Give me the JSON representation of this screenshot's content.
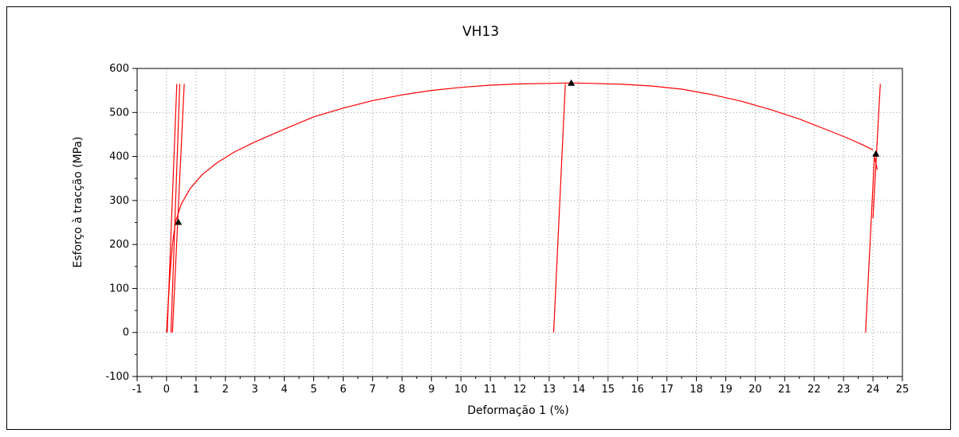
{
  "chart_data": {
    "type": "line",
    "title": "VH13",
    "xlabel": "Deformação 1 (%)",
    "ylabel": "Esforço à tracção (MPa)",
    "xlim": [
      -1,
      25
    ],
    "ylim": [
      -100,
      600
    ],
    "x_ticks": [
      "-1",
      "0",
      "1",
      "2",
      "3",
      "4",
      "5",
      "6",
      "7",
      "8",
      "9",
      "10",
      "11",
      "12",
      "13",
      "14",
      "15",
      "16",
      "17",
      "18",
      "19",
      "20",
      "21",
      "22",
      "23",
      "24",
      "25"
    ],
    "y_ticks": [
      "-100",
      "0",
      "100",
      "200",
      "300",
      "400",
      "500",
      "600"
    ],
    "grid": true,
    "legend": "none",
    "colors": {
      "line": "#ff0000",
      "marker": "#000000"
    },
    "series": [
      {
        "x": [
          0,
          0.05,
          0.1,
          0.15,
          0.2,
          0.3,
          0.5,
          0.8,
          1.2,
          1.7,
          2.3,
          3.0,
          4.0,
          5.0,
          6.0,
          7.0,
          8.0,
          9.0,
          10.0,
          11.0,
          12.0,
          13.0,
          13.7,
          14.5,
          15.5,
          16.5,
          17.5,
          18.5,
          19.5,
          20.5,
          21.5,
          22.5,
          23.2,
          23.7,
          24.0
        ],
        "y": [
          0,
          60,
          115,
          160,
          200,
          250,
          292,
          327,
          358,
          385,
          410,
          433,
          462,
          490,
          510,
          527,
          540,
          550,
          557,
          562,
          565,
          566,
          567,
          566,
          564,
          560,
          553,
          541,
          526,
          507,
          485,
          459,
          440,
          425,
          415
        ]
      },
      {
        "x": [
          0.15,
          0.45
        ],
        "y": [
          0,
          565
        ]
      },
      {
        "x": [
          0.02,
          0.35
        ],
        "y": [
          0,
          565
        ]
      },
      {
        "x": [
          0.2,
          0.6
        ],
        "y": [
          0,
          565
        ]
      },
      {
        "x": [
          13.15,
          13.55
        ],
        "y": [
          0,
          565
        ]
      },
      {
        "x": [
          23.75,
          24.05,
          24.15
        ],
        "y": [
          0,
          400,
          370
        ]
      },
      {
        "x": [
          24.0,
          24.25
        ],
        "y": [
          260,
          565
        ]
      }
    ],
    "markers": [
      {
        "x": 0.4,
        "y": 250
      },
      {
        "x": 13.75,
        "y": 566
      },
      {
        "x": 24.1,
        "y": 405
      }
    ]
  }
}
